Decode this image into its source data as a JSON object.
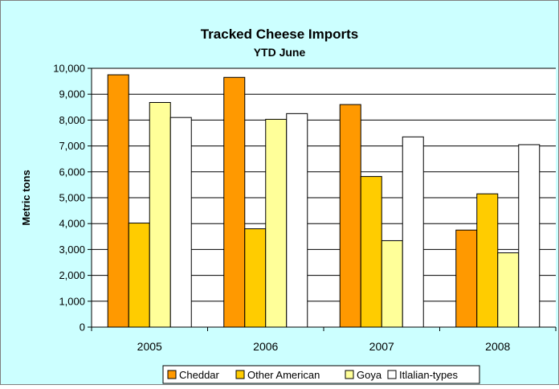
{
  "chart_data": {
    "type": "bar",
    "title": "Tracked Cheese Imports",
    "subtitle": "YTD June",
    "xlabel": "",
    "ylabel": "Metric tons",
    "categories": [
      "2005",
      "2006",
      "2007",
      "2008"
    ],
    "ylim": [
      0,
      10000
    ],
    "yticks": [
      0,
      1000,
      2000,
      3000,
      4000,
      5000,
      6000,
      7000,
      8000,
      9000,
      10000
    ],
    "ytick_labels": [
      "0",
      "1,000",
      "2,000",
      "3,000",
      "4,000",
      "5,000",
      "6,000",
      "7,000",
      "8,000",
      "9,000",
      "10,000"
    ],
    "grid": true,
    "legend_position": "bottom",
    "series": [
      {
        "name": "Cheddar",
        "color": "#FF9900",
        "values": [
          9750,
          9650,
          8600,
          3750
        ]
      },
      {
        "name": "Other American",
        "color": "#FFCC00",
        "values": [
          4020,
          3800,
          5820,
          5150
        ]
      },
      {
        "name": "Goya",
        "color": "#FFFF99",
        "values": [
          8680,
          8030,
          3340,
          2870
        ]
      },
      {
        "name": "Itlalian-types",
        "color": "#FFFFFF",
        "values": [
          8100,
          8250,
          7350,
          7050
        ]
      }
    ],
    "colors": {
      "background": "#CCFFFF",
      "plot_area": "#FFFFFF",
      "border": "#000000"
    }
  }
}
